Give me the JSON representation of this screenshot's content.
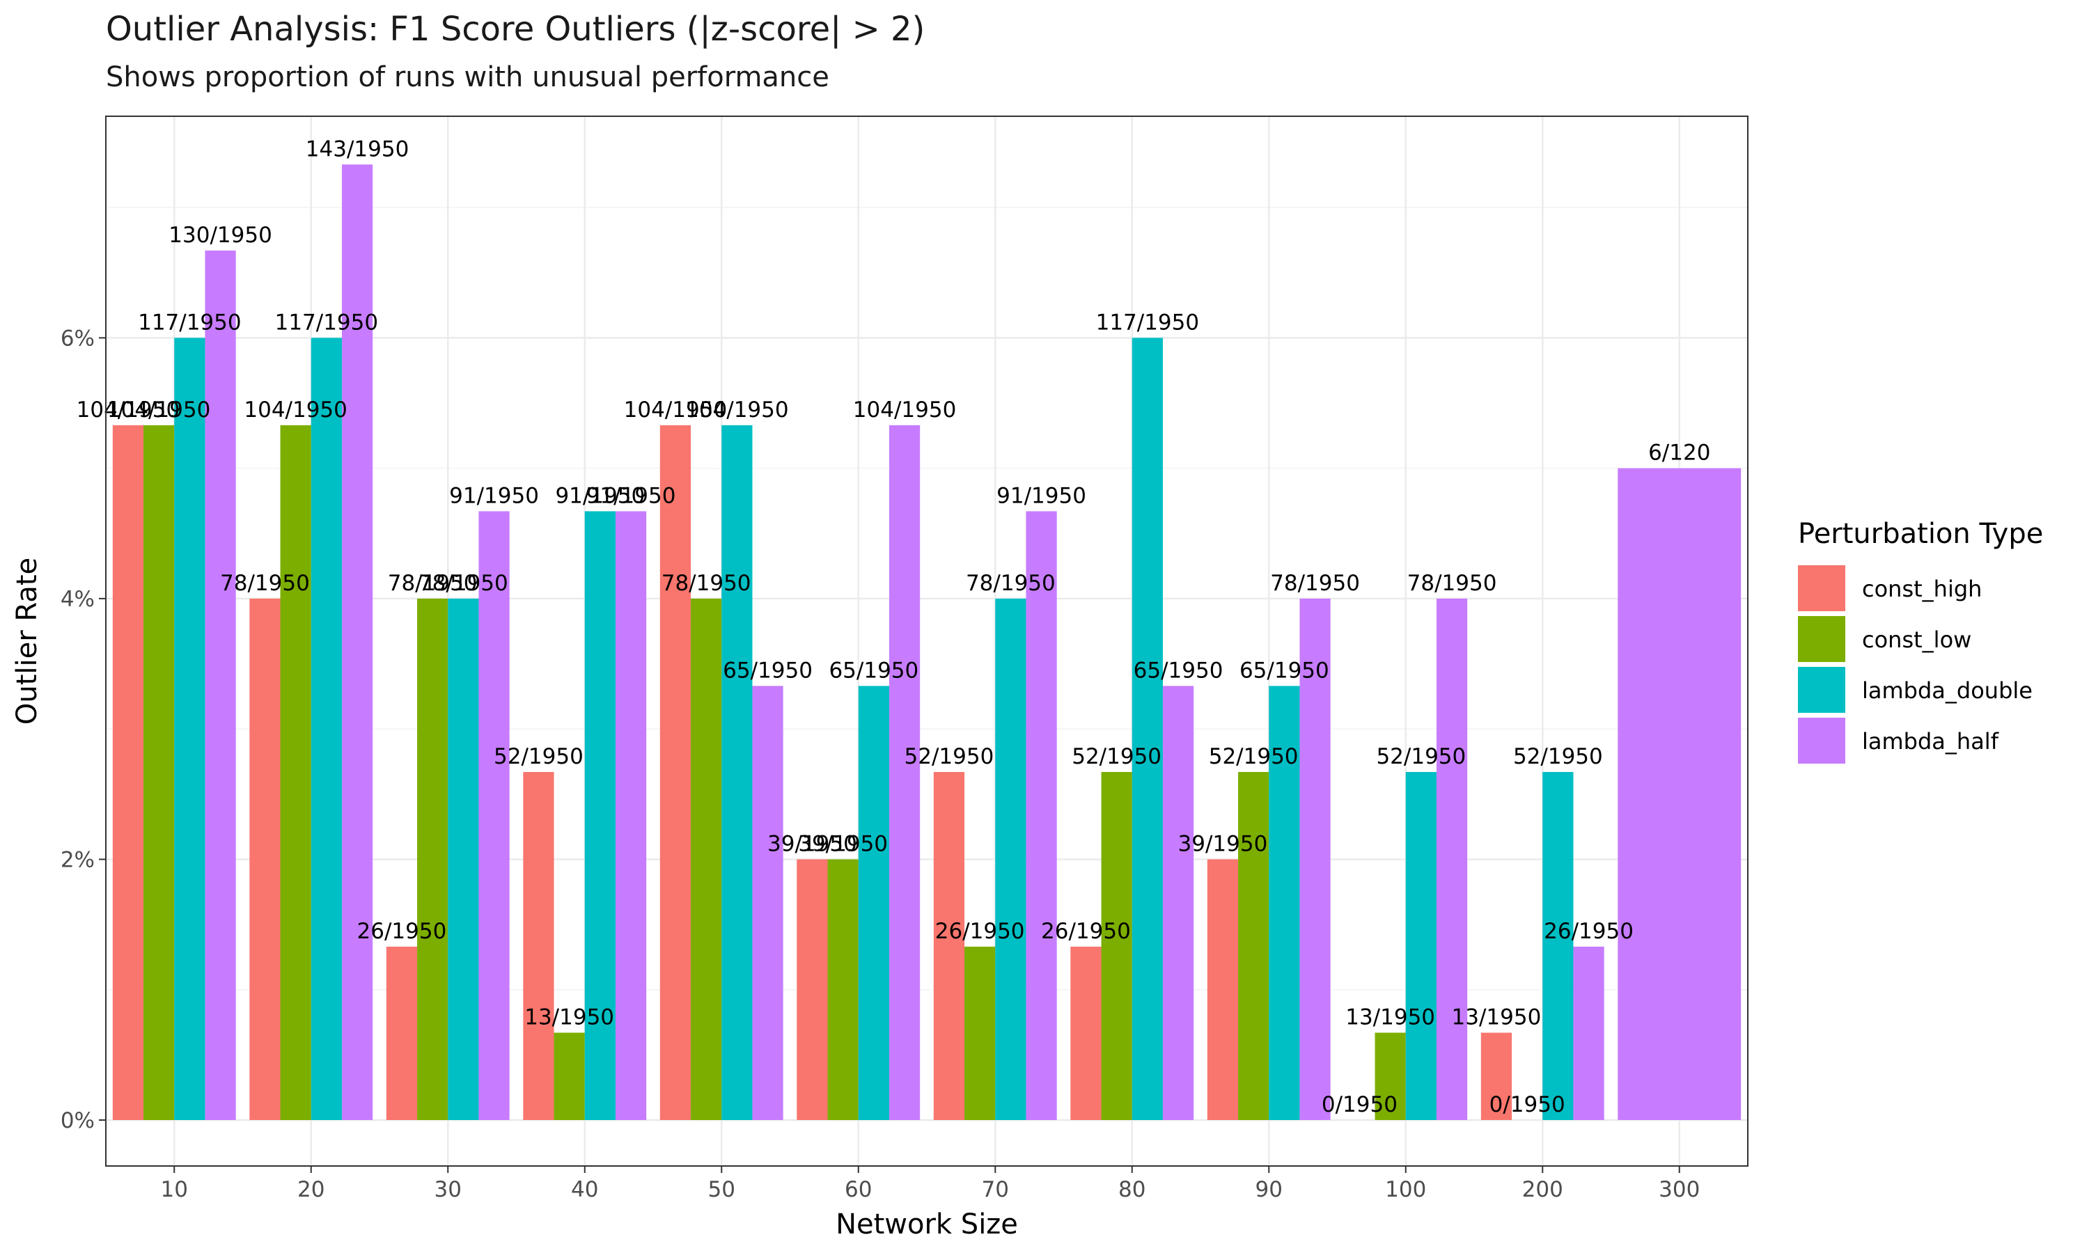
{
  "chart_data": {
    "type": "bar",
    "title": "Outlier Analysis: F1 Score Outliers (|z-score| > 2)",
    "subtitle": "Shows proportion of runs with unusual performance",
    "xlabel": "Network Size",
    "ylabel": "Outlier Rate",
    "ylim": [
      0,
      0.077
    ],
    "yticks": [
      0,
      0.02,
      0.04,
      0.06
    ],
    "ytick_labels": [
      "0%",
      "2%",
      "4%",
      "6%"
    ],
    "grid": true,
    "legend_position": "right",
    "legend_title": "Perturbation Type",
    "categories": [
      "10",
      "20",
      "30",
      "40",
      "50",
      "60",
      "70",
      "80",
      "90",
      "100",
      "200",
      "300"
    ],
    "series": [
      {
        "name": "const_high",
        "color": "#F8766D",
        "values": [
          0.0533,
          0.04,
          0.0133,
          0.0267,
          0.0533,
          0.02,
          0.0267,
          0.0133,
          0.02,
          0.0,
          0.0067,
          null
        ],
        "labels": [
          "104/1950",
          "78/1950",
          "26/1950",
          "52/1950",
          "104/1950",
          "39/1950",
          "52/1950",
          "26/1950",
          "39/1950",
          "0/1950",
          "13/1950",
          null
        ]
      },
      {
        "name": "const_low",
        "color": "#7CAE00",
        "values": [
          0.0533,
          0.0533,
          0.04,
          0.0067,
          0.04,
          0.02,
          0.0133,
          0.0267,
          0.0267,
          0.0067,
          0.0,
          null
        ],
        "labels": [
          "104/1950",
          "104/1950",
          "78/1950",
          "13/1950",
          "78/1950",
          "39/1950",
          "26/1950",
          "52/1950",
          "52/1950",
          "13/1950",
          "0/1950",
          null
        ]
      },
      {
        "name": "lambda_double",
        "color": "#00BFC4",
        "values": [
          0.06,
          0.06,
          0.04,
          0.0467,
          0.0533,
          0.0333,
          0.04,
          0.06,
          0.0333,
          0.0267,
          0.0267,
          null
        ],
        "labels": [
          "117/1950",
          "117/1950",
          "78/1950",
          "91/1950",
          "104/1950",
          "65/1950",
          "78/1950",
          "117/1950",
          "65/1950",
          "52/1950",
          "52/1950",
          null
        ]
      },
      {
        "name": "lambda_half",
        "color": "#C77CFF",
        "values": [
          0.0667,
          0.0733,
          0.0467,
          0.0467,
          0.0333,
          0.0533,
          0.0467,
          0.0333,
          0.04,
          0.04,
          0.0133,
          0.05
        ],
        "labels": [
          "130/1950",
          "143/1950",
          "91/1950",
          "91/1950",
          "65/1950",
          "104/1950",
          "91/1950",
          "65/1950",
          "78/1950",
          "78/1950",
          "26/1950",
          "6/120"
        ]
      }
    ]
  }
}
